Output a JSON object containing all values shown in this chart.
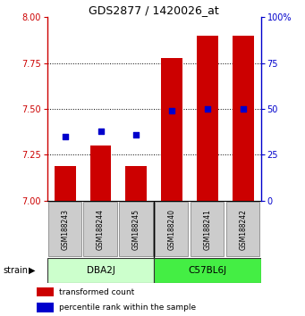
{
  "title": "GDS2877 / 1420026_at",
  "samples": [
    "GSM188243",
    "GSM188244",
    "GSM188245",
    "GSM188240",
    "GSM188241",
    "GSM188242"
  ],
  "bar_values": [
    7.19,
    7.3,
    7.19,
    7.78,
    7.9,
    7.9
  ],
  "percentile_values": [
    35,
    38,
    36,
    49,
    50,
    50
  ],
  "ylim_left": [
    7.0,
    8.0
  ],
  "ylim_right": [
    0,
    100
  ],
  "yticks_left": [
    7.0,
    7.25,
    7.5,
    7.75,
    8.0
  ],
  "yticks_right": [
    0,
    25,
    50,
    75,
    100
  ],
  "bar_color": "#cc0000",
  "dot_color": "#0000cc",
  "bar_width": 0.6,
  "background_color": "#ffffff",
  "legend_items": [
    "transformed count",
    "percentile rank within the sample"
  ],
  "legend_colors": [
    "#cc0000",
    "#0000cc"
  ],
  "strain_label": "strain",
  "left_tick_color": "#cc0000",
  "right_tick_color": "#0000cc",
  "group_labels": [
    "DBA2J",
    "C57BL6J"
  ],
  "group_colors": [
    "#ccffcc",
    "#44ee44"
  ],
  "sample_area_color": "#cccccc",
  "dba2j_group_color": "#ccffcc",
  "c57bl6j_group_color": "#44ee44"
}
